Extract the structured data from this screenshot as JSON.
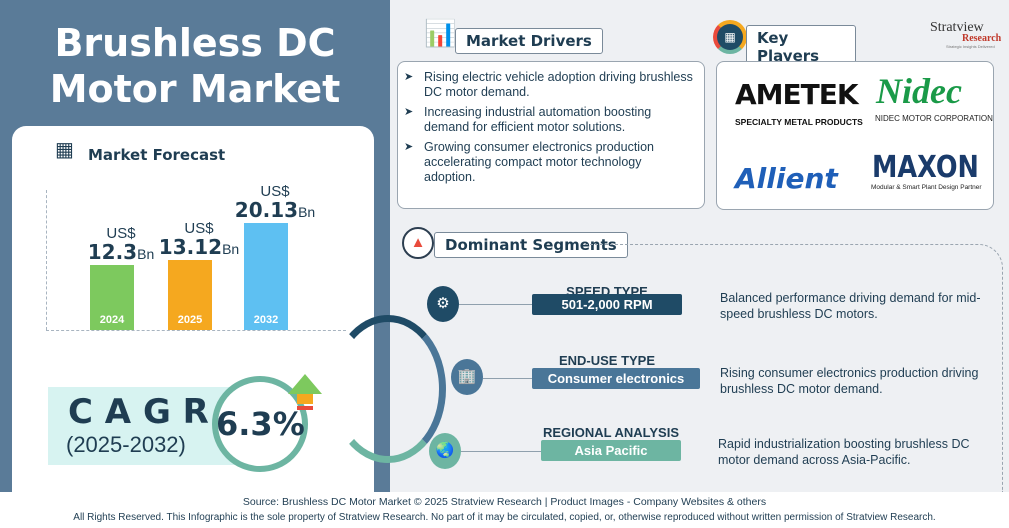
{
  "title": "Brushless DC Motor Market",
  "forecast": {
    "heading": "Market Forecast",
    "currency": "US$",
    "unit": "Bn",
    "bars": [
      {
        "year": "2024",
        "value": "12.3",
        "color": "#7dc95e"
      },
      {
        "year": "2025",
        "value": "13.12",
        "color": "#f5a81f"
      },
      {
        "year": "2032",
        "value": "20.13",
        "color": "#5ec0f2"
      }
    ]
  },
  "chart_data": {
    "type": "bar",
    "categories": [
      "2024",
      "2025",
      "2032"
    ],
    "values": [
      12.3,
      13.12,
      20.13
    ],
    "unit": "US$ Bn"
  },
  "cagr": {
    "label": "C A G R",
    "period": "(2025-2032)",
    "value": "6.3%"
  },
  "drivers": {
    "heading": "Market Drivers",
    "items": [
      "Rising electric vehicle adoption driving brushless DC motor demand.",
      "Increasing industrial automation boosting demand for efficient motor solutions.",
      "Growing consumer electronics production accelerating compact motor technology adoption."
    ]
  },
  "players": {
    "heading": "Key Players",
    "logos": [
      {
        "name": "AMETEK",
        "sub": "SPECIALTY METAL PRODUCTS"
      },
      {
        "name": "Nidec",
        "sub": "NIDEC MOTOR CORPORATION"
      },
      {
        "name": "Allient",
        "sub": ""
      },
      {
        "name": "MAXON",
        "sub": "Modular & Smart Plant Design Partner"
      }
    ]
  },
  "brand": {
    "name": "Stratview",
    "sub": "Research",
    "tagline": "Strategic Insights Delivered"
  },
  "segments": {
    "heading": "Dominant Segments",
    "items": [
      {
        "title": "SPEED TYPE",
        "value": "501-2,000 RPM",
        "desc": "Balanced performance driving demand for mid-speed brushless DC motors.",
        "color": "#1f4b66",
        "icon": "gear-window-icon"
      },
      {
        "title": "END-USE TYPE",
        "value": "Consumer electronics",
        "desc": "Rising consumer electronics production driving brushless DC motor demand.",
        "color": "#4a7698",
        "icon": "buildings-icon"
      },
      {
        "title": "REGIONAL ANALYSIS",
        "value": "Asia Pacific",
        "desc": "Rapid industrialization boosting brushless DC motor demand across Asia-Pacific.",
        "color": "#6db5a2",
        "icon": "asia-map-icon"
      }
    ]
  },
  "footer": {
    "source": "Source: Brushless DC Motor Market © 2025 Stratview Research | Product Images  - Company Websites & others",
    "rights": "All Rights Reserved. This Infographic is the sole property of Stratview Research. No part of it may be circulated, copied, or, otherwise reproduced without written permission of Stratview Research."
  }
}
